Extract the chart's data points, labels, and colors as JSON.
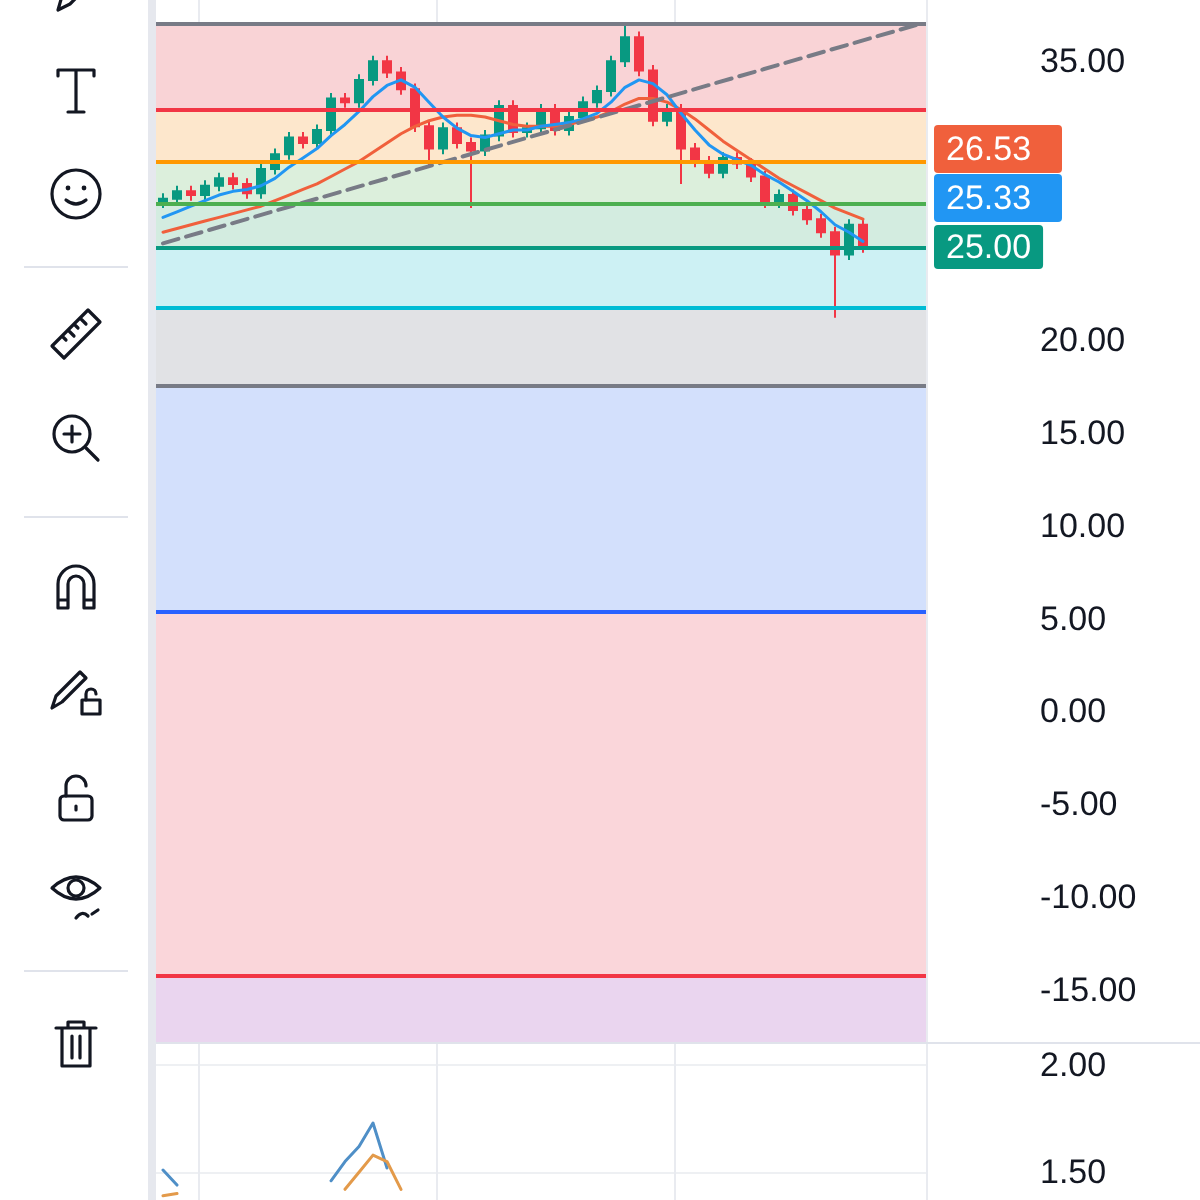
{
  "chart_data": [
    {
      "type": "candlestick",
      "categories": [
        null,
        null,
        null,
        null,
        null,
        null,
        null,
        null,
        null,
        null,
        null,
        null,
        null,
        null,
        null,
        null,
        null,
        null,
        null,
        null,
        null,
        null,
        null,
        null,
        null,
        null,
        null,
        null,
        null,
        null,
        null,
        null,
        null,
        null,
        null,
        null,
        null,
        null,
        null,
        null,
        null,
        null,
        null,
        null,
        null,
        null,
        null,
        null,
        null,
        null,
        null,
        null,
        null,
        null,
        null
      ],
      "ohlc": [
        [
          27.4,
          27.9,
          27.1,
          27.6
        ],
        [
          27.6,
          28.3,
          27.3,
          28.0
        ],
        [
          28.0,
          28.3,
          27.5,
          27.8
        ],
        [
          27.8,
          28.6,
          27.5,
          28.3
        ],
        [
          28.3,
          29.0,
          28.0,
          28.7
        ],
        [
          28.7,
          29.0,
          28.1,
          28.4
        ],
        [
          28.4,
          28.7,
          27.6,
          27.9
        ],
        [
          27.9,
          29.5,
          27.6,
          29.2
        ],
        [
          29.2,
          30.3,
          28.9,
          30.0
        ],
        [
          30.0,
          31.2,
          29.7,
          30.9
        ],
        [
          30.9,
          31.2,
          30.3,
          30.6
        ],
        [
          30.6,
          31.6,
          30.3,
          31.3
        ],
        [
          31.3,
          33.3,
          31.0,
          33.0
        ],
        [
          33.0,
          33.3,
          32.5,
          32.8
        ],
        [
          32.8,
          34.3,
          32.5,
          34.0
        ],
        [
          34.0,
          35.3,
          33.7,
          35.0
        ],
        [
          35.0,
          35.3,
          34.1,
          34.4
        ],
        [
          34.4,
          34.7,
          33.2,
          33.5
        ],
        [
          33.5,
          33.8,
          31.2,
          31.5
        ],
        [
          31.5,
          31.8,
          29.4,
          30.3
        ],
        [
          30.3,
          31.7,
          30.0,
          31.4
        ],
        [
          31.4,
          31.7,
          30.3,
          30.6
        ],
        [
          30.6,
          30.9,
          27.1,
          30.2
        ],
        [
          30.2,
          31.3,
          29.9,
          31.0
        ],
        [
          31.0,
          32.9,
          30.7,
          32.6
        ],
        [
          32.6,
          32.9,
          30.9,
          31.2
        ],
        [
          31.2,
          31.7,
          30.9,
          31.4
        ],
        [
          31.4,
          32.7,
          31.1,
          32.4
        ],
        [
          32.4,
          32.7,
          31.0,
          31.3
        ],
        [
          31.3,
          32.3,
          31.0,
          32.0
        ],
        [
          32.0,
          33.1,
          31.7,
          32.8
        ],
        [
          32.8,
          33.7,
          32.5,
          33.4
        ],
        [
          33.4,
          35.3,
          33.1,
          35.0
        ],
        [
          35.0,
          37.0,
          34.7,
          36.3
        ],
        [
          36.3,
          36.6,
          34.2,
          34.5
        ],
        [
          34.5,
          34.8,
          31.5,
          31.8
        ],
        [
          31.8,
          32.7,
          31.5,
          32.4
        ],
        [
          32.4,
          32.7,
          28.4,
          30.3
        ],
        [
          30.3,
          30.6,
          29.3,
          29.6
        ],
        [
          29.6,
          29.9,
          28.7,
          29.0
        ],
        [
          29.0,
          30.1,
          28.7,
          29.8
        ],
        [
          29.8,
          30.1,
          29.2,
          29.5
        ],
        [
          29.5,
          29.8,
          28.5,
          28.8
        ],
        [
          28.8,
          29.1,
          27.1,
          27.4
        ],
        [
          27.4,
          28.1,
          27.1,
          27.8
        ],
        [
          27.8,
          28.1,
          26.7,
          27.0
        ],
        [
          27.0,
          27.3,
          26.2,
          26.5
        ],
        [
          26.5,
          26.8,
          25.5,
          25.8
        ],
        [
          25.8,
          26.1,
          21.2,
          24.6
        ],
        [
          24.6,
          26.5,
          24.3,
          26.2
        ],
        [
          26.2,
          26.5,
          24.7,
          25.0
        ],
        null,
        null,
        null,
        null
      ],
      "series": [
        {
          "type": "line",
          "color": "#f0603c",
          "values": [
            25.8,
            26.0,
            26.2,
            26.4,
            26.6,
            26.8,
            27.0,
            27.2,
            27.5,
            27.8,
            28.1,
            28.4,
            28.8,
            29.2,
            29.6,
            30.1,
            30.6,
            31.1,
            31.5,
            31.8,
            32.0,
            32.1,
            32.1,
            32.0,
            31.8,
            31.6,
            31.5,
            31.5,
            31.5,
            31.6,
            31.8,
            32.0,
            32.3,
            32.7,
            33.0,
            33.0,
            32.8,
            32.4,
            31.9,
            31.3,
            30.7,
            30.2,
            29.7,
            29.2,
            28.7,
            28.3,
            27.9,
            27.5,
            27.1,
            26.8,
            26.5,
            null,
            null,
            null,
            null
          ]
        },
        {
          "type": "line",
          "color": "#2196f3",
          "values": [
            26.6,
            26.9,
            27.2,
            27.5,
            27.8,
            28.0,
            28.1,
            28.3,
            28.7,
            29.3,
            29.8,
            30.3,
            31.0,
            31.6,
            32.3,
            33.1,
            33.7,
            34.0,
            33.6,
            32.8,
            32.0,
            31.4,
            31.0,
            30.9,
            31.1,
            31.3,
            31.3,
            31.5,
            31.6,
            31.7,
            31.9,
            32.2,
            32.8,
            33.6,
            34.0,
            33.8,
            33.2,
            32.2,
            31.3,
            30.5,
            30.0,
            29.7,
            29.4,
            28.9,
            28.5,
            28.0,
            27.5,
            26.9,
            26.2,
            25.8,
            25.3,
            null,
            null,
            null,
            null
          ]
        },
        {
          "type": "line",
          "color": "#787b86",
          "line_style": "dashed",
          "values": [
            25.2,
            null,
            null,
            null,
            null,
            null,
            null,
            null,
            null,
            null,
            null,
            null,
            null,
            null,
            null,
            null,
            null,
            null,
            null,
            null,
            null,
            null,
            null,
            null,
            null,
            null,
            null,
            null,
            null,
            null,
            null,
            null,
            null,
            null,
            null,
            null,
            null,
            null,
            null,
            null,
            null,
            null,
            null,
            null,
            null,
            null,
            null,
            null,
            null,
            null,
            null,
            null,
            null,
            null,
            37.0
          ]
        }
      ],
      "ylim": [
        -17.9,
        38.3
      ],
      "yticks": [
        {
          "value": -15,
          "label": "-15.00"
        },
        {
          "value": -10,
          "label": "-10.00"
        },
        {
          "value": -5,
          "label": "-5.00"
        },
        {
          "value": 0,
          "label": "0.00"
        },
        {
          "value": 5,
          "label": "5.00"
        },
        {
          "value": 10,
          "label": "10.00"
        },
        {
          "value": 15,
          "label": "15.00"
        },
        {
          "value": 20,
          "label": "20.00"
        },
        {
          "value": 35,
          "label": "35.00"
        }
      ],
      "bands": [
        {
          "axis": "y",
          "from": 32.4,
          "to": 37.0,
          "color": "#f9d3d6"
        },
        {
          "axis": "y",
          "from": 29.6,
          "to": 32.4,
          "color": "#fde7cc"
        },
        {
          "axis": "y",
          "from": 27.3,
          "to": 29.6,
          "color": "#dcefdc"
        },
        {
          "axis": "y",
          "from": 25.0,
          "to": 27.3,
          "color": "#d3ece0"
        },
        {
          "axis": "y",
          "from": 21.7,
          "to": 25.0,
          "color": "#cdf1f4"
        },
        {
          "axis": "y",
          "from": 17.5,
          "to": 21.7,
          "color": "#e1e2e5"
        },
        {
          "axis": "y",
          "from": 5.4,
          "to": 17.5,
          "color": "#d3e0fc"
        },
        {
          "axis": "y",
          "from": -14.2,
          "to": 5.4,
          "color": "#fad6da"
        },
        {
          "axis": "y",
          "from": -17.9,
          "to": -14.2,
          "color": "#ead5ef"
        }
      ],
      "ref_lines": [
        {
          "axis": "y",
          "value": 37.0,
          "color": "#787b86"
        },
        {
          "axis": "y",
          "value": 32.4,
          "color": "#f23645"
        },
        {
          "axis": "y",
          "value": 29.6,
          "color": "#ff9800"
        },
        {
          "axis": "y",
          "value": 27.3,
          "color": "#4caf50"
        },
        {
          "axis": "y",
          "value": 25.0,
          "label": "25.00",
          "color": "#089981"
        },
        {
          "axis": "y",
          "value": 21.7,
          "color": "#00bcd4"
        },
        {
          "axis": "y",
          "value": 17.5,
          "color": "#787b86"
        },
        {
          "axis": "y",
          "value": 5.4,
          "color": "#2962ff"
        },
        {
          "axis": "y",
          "value": -14.2,
          "color": "#f23645"
        }
      ],
      "annotations": [
        "26.53",
        "25.33"
      ],
      "grid": true,
      "tick_labels": "y"
    },
    {
      "type": "line",
      "categories": [
        null,
        null,
        null,
        null,
        null,
        null,
        null,
        null,
        null,
        null,
        null,
        null,
        null,
        null,
        null,
        null,
        null,
        null,
        null,
        null,
        null,
        null,
        null,
        null,
        null,
        null,
        null,
        null,
        null,
        null,
        null,
        null,
        null,
        null,
        null,
        null,
        null,
        null,
        null,
        null,
        null,
        null,
        null,
        null,
        null,
        null,
        null,
        null,
        null,
        null,
        null,
        null,
        null,
        null,
        null
      ],
      "series": [
        {
          "color": "#4f8fc7",
          "values": [
            1.51,
            1.44,
            null,
            null,
            null,
            null,
            null,
            null,
            null,
            null,
            null,
            null,
            1.46,
            1.55,
            1.62,
            1.73,
            1.52,
            null,
            null,
            null,
            null,
            null,
            null,
            null,
            null,
            null,
            null,
            null,
            null,
            null,
            null,
            null,
            null,
            null,
            null,
            null,
            null,
            null,
            null,
            null,
            null,
            null,
            null,
            null,
            null,
            null,
            null,
            null,
            null,
            null,
            null,
            null,
            null,
            null,
            null
          ]
        },
        {
          "color": "#e39a4a",
          "values": [
            1.39,
            1.4,
            null,
            null,
            null,
            null,
            null,
            null,
            null,
            null,
            null,
            null,
            null,
            1.42,
            1.5,
            1.58,
            1.55,
            1.42,
            null,
            null,
            null,
            null,
            null,
            null,
            null,
            null,
            null,
            null,
            null,
            null,
            null,
            null,
            null,
            null,
            null,
            null,
            null,
            null,
            null,
            null,
            null,
            null,
            null,
            null,
            null,
            null,
            null,
            null,
            null,
            null,
            null,
            null,
            null,
            null,
            null
          ]
        }
      ],
      "ylim": [
        1.37,
        2.1
      ],
      "yticks": [
        {
          "value": 1.5,
          "label": "1.50"
        },
        {
          "value": 2,
          "label": "2.00"
        }
      ],
      "grid": true,
      "tick_labels": "y"
    }
  ]
}
